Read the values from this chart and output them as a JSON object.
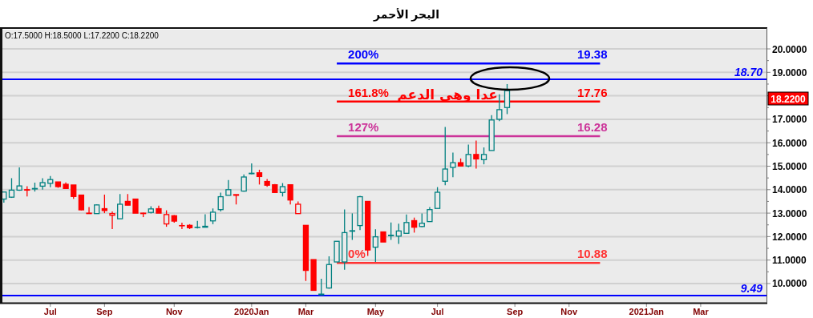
{
  "chart_data": {
    "type": "candlestick",
    "title": "البحر الأحمر",
    "categories": [
      null,
      null,
      null,
      null,
      null,
      null,
      "Jul",
      null,
      null,
      null,
      null,
      null,
      null,
      "Sep",
      null,
      null,
      null,
      null,
      null,
      null,
      null,
      null,
      "Nov",
      null,
      null,
      null,
      null,
      null,
      null,
      null,
      null,
      null,
      "2020Jan",
      null,
      null,
      null,
      null,
      null,
      null,
      "Mar",
      null,
      null,
      null,
      null,
      null,
      null,
      null,
      null,
      "May",
      null,
      null,
      null,
      null,
      null,
      null,
      null,
      "Jul",
      null,
      null,
      null,
      null,
      null,
      null,
      null,
      null,
      null,
      "Sep",
      null,
      null,
      null,
      null,
      null,
      null,
      "Nov",
      null,
      null,
      null,
      null,
      null,
      null,
      null,
      null,
      null,
      "2021Jan",
      null,
      null,
      null,
      null,
      null,
      null,
      "Mar",
      null,
      null,
      null,
      null,
      null,
      null,
      null,
      null
    ],
    "ohlc": [
      [
        13.6,
        13.9,
        13.45,
        13.9
      ],
      [
        13.68,
        14.49,
        13.65,
        13.98
      ],
      [
        13.98,
        14.95,
        13.95,
        14.16
      ],
      [
        14.0,
        14.15,
        13.71,
        13.98
      ],
      [
        14.03,
        14.3,
        13.92,
        14.05
      ],
      [
        14.15,
        14.49,
        14.0,
        14.3
      ],
      [
        14.27,
        14.58,
        14.1,
        14.43
      ],
      [
        14.33,
        14.33,
        14.08,
        14.13
      ],
      [
        14.23,
        14.31,
        14.05,
        14.05
      ],
      [
        14.2,
        14.2,
        13.61,
        13.71
      ],
      [
        13.77,
        13.77,
        13.12,
        13.14
      ],
      [
        13.0,
        13.26,
        12.98,
        12.98
      ],
      [
        12.98,
        13.38,
        12.98,
        13.35
      ],
      [
        13.19,
        13.79,
        13.0,
        13.11
      ],
      [
        12.91,
        13.07,
        12.32,
        12.98
      ],
      [
        12.76,
        13.81,
        12.76,
        13.38
      ],
      [
        13.5,
        13.81,
        13.34,
        13.34
      ],
      [
        13.6,
        13.6,
        13.0,
        13.0
      ],
      [
        13.0,
        13.02,
        12.83,
        12.98
      ],
      [
        13.03,
        13.29,
        12.99,
        13.18
      ],
      [
        13.19,
        13.32,
        13.0,
        13.0
      ],
      [
        12.54,
        13.12,
        12.42,
        12.94
      ],
      [
        12.89,
        12.92,
        12.59,
        12.66
      ],
      [
        12.47,
        12.59,
        12.32,
        12.46
      ],
      [
        12.48,
        12.53,
        12.32,
        12.38
      ],
      [
        12.39,
        12.67,
        12.35,
        12.4
      ],
      [
        12.4,
        12.95,
        12.4,
        12.44
      ],
      [
        12.67,
        13.2,
        12.53,
        13.04
      ],
      [
        13.15,
        13.87,
        13.07,
        13.7
      ],
      [
        13.76,
        14.41,
        13.76,
        14.0
      ],
      [
        13.79,
        13.79,
        13.37,
        13.76
      ],
      [
        13.94,
        14.65,
        13.92,
        14.54
      ],
      [
        14.68,
        15.12,
        14.66,
        14.7
      ],
      [
        14.72,
        14.85,
        14.22,
        14.56
      ],
      [
        14.35,
        14.45,
        14.12,
        14.19
      ],
      [
        14.21,
        14.24,
        13.88,
        13.88
      ],
      [
        13.88,
        14.28,
        13.71,
        14.13
      ],
      [
        14.21,
        14.21,
        13.37,
        13.56
      ],
      [
        12.98,
        13.5,
        12.98,
        13.38
      ],
      [
        12.48,
        12.48,
        10.11,
        10.56
      ],
      [
        11.02,
        11.02,
        9.71,
        9.71
      ],
      [
        9.52,
        10.2,
        9.49,
        9.55
      ],
      [
        9.81,
        11.16,
        9.78,
        10.81
      ],
      [
        10.92,
        11.8,
        10.92,
        11.8
      ],
      [
        10.92,
        13.16,
        10.59,
        12.17
      ],
      [
        12.23,
        12.99,
        11.86,
        12.25
      ],
      [
        12.47,
        13.74,
        12.28,
        13.7
      ],
      [
        13.5,
        13.5,
        11.18,
        11.43
      ],
      [
        11.55,
        12.31,
        10.92,
        11.99
      ],
      [
        12.2,
        12.2,
        11.77,
        11.77
      ],
      [
        12.04,
        12.6,
        11.86,
        12.06
      ],
      [
        12.02,
        12.55,
        11.69,
        12.24
      ],
      [
        12.14,
        12.94,
        12.14,
        12.6
      ],
      [
        12.68,
        12.81,
        12.17,
        12.4
      ],
      [
        12.43,
        12.99,
        12.41,
        12.57
      ],
      [
        12.64,
        13.26,
        12.64,
        13.15
      ],
      [
        13.2,
        14.11,
        13.2,
        13.89
      ],
      [
        14.36,
        16.67,
        14.19,
        14.88
      ],
      [
        14.95,
        15.58,
        14.53,
        15.15
      ],
      [
        15.15,
        15.33,
        15.01,
        15.01
      ],
      [
        15.01,
        15.92,
        14.96,
        15.5
      ],
      [
        15.5,
        16.09,
        14.9,
        15.31
      ],
      [
        15.28,
        15.8,
        15.08,
        15.5
      ],
      [
        15.67,
        17.18,
        15.67,
        16.97
      ],
      [
        17.0,
        18.06,
        16.92,
        17.41
      ],
      [
        17.5,
        18.5,
        17.22,
        18.22
      ],
      null,
      null,
      null,
      null,
      null,
      null,
      null,
      null,
      null,
      null,
      null,
      null,
      null,
      null,
      null,
      null,
      null,
      null,
      null,
      null,
      null,
      null,
      null,
      null,
      null,
      null,
      null,
      null,
      null,
      null,
      null,
      null,
      null
    ],
    "colors": [
      "#008080",
      "#008080",
      "#008080",
      "#ff0000",
      "#008080",
      "#008080",
      "#008080",
      "#ff0000",
      "#ff0000",
      "#ff0000",
      "#ff0000",
      "#ff0000",
      "#008080",
      "#ff0000",
      "#ff0000",
      "#008080",
      "#ff0000",
      "#ff0000",
      "#ff0000",
      "#008080",
      "#ff0000",
      "#ff0000",
      "#ff0000",
      "#ff0000",
      "#ff0000",
      "#008080",
      "#008080",
      "#008080",
      "#008080",
      "#008080",
      "#ff0000",
      "#008080",
      "#008080",
      "#ff0000",
      "#ff0000",
      "#ff0000",
      "#008080",
      "#ff0000",
      "#ff0000",
      "#ff0000",
      "#ff0000",
      "#008080",
      "#008080",
      "#008080",
      "#008080",
      "#008080",
      "#008080",
      "#ff0000",
      "#008080",
      "#ff0000",
      "#008080",
      "#008080",
      "#008080",
      "#ff0000",
      "#008080",
      "#008080",
      "#008080",
      "#008080",
      "#008080",
      "#ff0000",
      "#008080",
      "#ff0000",
      "#008080",
      "#008080",
      "#008080",
      "#008080",
      null,
      null,
      null,
      null,
      null,
      null,
      null,
      null,
      null,
      null,
      null,
      null,
      null,
      null,
      null,
      null,
      null,
      null,
      null,
      null,
      null,
      null,
      null,
      null,
      null,
      null,
      null,
      null,
      null,
      null,
      null,
      null,
      null
    ],
    "ylim": [
      9.18,
      20.82
    ],
    "yticks": [
      {
        "value": 10,
        "label": "10.0000"
      },
      {
        "value": 11,
        "label": "11.0000"
      },
      {
        "value": 12,
        "label": "12.0000"
      },
      {
        "value": 13,
        "label": "13.0000"
      },
      {
        "value": 14,
        "label": "14.0000"
      },
      {
        "value": 15,
        "label": "15.0000"
      },
      {
        "value": 16,
        "label": "16.0000"
      },
      {
        "value": 17,
        "label": "17.0000"
      },
      {
        "value": 18,
        "label": null
      },
      {
        "value": 19,
        "label": "19.0000"
      },
      {
        "value": 20,
        "label": "20.0000"
      }
    ],
    "grid": "y",
    "ref_lines": [
      {
        "axis": "y",
        "value": 18.7,
        "label": "18.70",
        "color": "#0000ff"
      },
      {
        "axis": "y",
        "value": 9.49,
        "label": "9.49",
        "color": "#0000ff"
      }
    ],
    "series": [
      {
        "type": "line",
        "name": "200%",
        "color": "#0000ff",
        "values": [
          null,
          null,
          null,
          null,
          null,
          null,
          null,
          null,
          null,
          null,
          null,
          null,
          null,
          null,
          null,
          null,
          null,
          null,
          null,
          null,
          null,
          null,
          null,
          null,
          null,
          null,
          null,
          null,
          null,
          null,
          null,
          null,
          null,
          null,
          null,
          null,
          null,
          null,
          null,
          null,
          null,
          null,
          null,
          19.38,
          19.38,
          19.38,
          19.38,
          19.38,
          19.38,
          19.38,
          19.38,
          19.38,
          19.38,
          19.38,
          19.38,
          19.38,
          19.38,
          19.38,
          19.38,
          19.38,
          19.38,
          19.38,
          19.38,
          19.38,
          19.38,
          19.38,
          19.38,
          19.38,
          19.38,
          19.38,
          19.38,
          19.38,
          19.38,
          19.38,
          19.38,
          19.38,
          19.38,
          19.38,
          null,
          null,
          null,
          null,
          null,
          null,
          null,
          null,
          null,
          null,
          null,
          null,
          null,
          null,
          null,
          null,
          null,
          null,
          null,
          null,
          null
        ],
        "value_labels": [
          null,
          null,
          null,
          null,
          null,
          null,
          null,
          null,
          null,
          null,
          null,
          null,
          null,
          null,
          null,
          null,
          null,
          null,
          null,
          null,
          null,
          null,
          null,
          null,
          null,
          null,
          null,
          null,
          null,
          null,
          null,
          null,
          null,
          null,
          null,
          null,
          null,
          null,
          null,
          null,
          null,
          null,
          null,
          null,
          null,
          null,
          null,
          null,
          null,
          null,
          null,
          null,
          null,
          null,
          null,
          null,
          null,
          null,
          null,
          null,
          null,
          null,
          null,
          null,
          null,
          null,
          null,
          null,
          null,
          null,
          null,
          null,
          null,
          null,
          null,
          null,
          "19.38",
          null,
          null,
          null,
          null,
          null,
          null,
          null,
          null,
          null,
          null,
          null,
          null,
          null,
          null,
          null,
          null,
          null,
          null,
          null,
          null,
          null,
          null
        ]
      },
      {
        "type": "line",
        "name": "161.8%",
        "color": "#ff0000",
        "values": [
          null,
          null,
          null,
          null,
          null,
          null,
          null,
          null,
          null,
          null,
          null,
          null,
          null,
          null,
          null,
          null,
          null,
          null,
          null,
          null,
          null,
          null,
          null,
          null,
          null,
          null,
          null,
          null,
          null,
          null,
          null,
          null,
          null,
          null,
          null,
          null,
          null,
          null,
          null,
          null,
          null,
          null,
          null,
          17.76,
          17.76,
          17.76,
          17.76,
          17.76,
          17.76,
          17.76,
          17.76,
          17.76,
          17.76,
          17.76,
          17.76,
          17.76,
          17.76,
          17.76,
          17.76,
          17.76,
          17.76,
          17.76,
          17.76,
          17.76,
          17.76,
          17.76,
          17.76,
          17.76,
          17.76,
          17.76,
          17.76,
          17.76,
          17.76,
          17.76,
          17.76,
          17.76,
          17.76,
          17.76,
          null,
          null,
          null,
          null,
          null,
          null,
          null,
          null,
          null,
          null,
          null,
          null,
          null,
          null,
          null,
          null,
          null,
          null,
          null,
          null,
          null
        ],
        "value_labels": [
          null,
          null,
          null,
          null,
          null,
          null,
          null,
          null,
          null,
          null,
          null,
          null,
          null,
          null,
          null,
          null,
          null,
          null,
          null,
          null,
          null,
          null,
          null,
          null,
          null,
          null,
          null,
          null,
          null,
          null,
          null,
          null,
          null,
          null,
          null,
          null,
          null,
          null,
          null,
          null,
          null,
          null,
          null,
          null,
          null,
          null,
          null,
          null,
          null,
          null,
          null,
          null,
          null,
          null,
          null,
          null,
          null,
          null,
          null,
          null,
          null,
          null,
          null,
          null,
          null,
          null,
          null,
          null,
          null,
          null,
          null,
          null,
          null,
          null,
          null,
          null,
          "17.76",
          null,
          null,
          null,
          null,
          null,
          null,
          null,
          null,
          null,
          null,
          null,
          null,
          null,
          null,
          null,
          null,
          null,
          null,
          null,
          null,
          null,
          null
        ]
      },
      {
        "type": "line",
        "name": "127%",
        "color": "#cc3399",
        "values": [
          null,
          null,
          null,
          null,
          null,
          null,
          null,
          null,
          null,
          null,
          null,
          null,
          null,
          null,
          null,
          null,
          null,
          null,
          null,
          null,
          null,
          null,
          null,
          null,
          null,
          null,
          null,
          null,
          null,
          null,
          null,
          null,
          null,
          null,
          null,
          null,
          null,
          null,
          null,
          null,
          null,
          null,
          null,
          16.28,
          16.28,
          16.28,
          16.28,
          16.28,
          16.28,
          16.28,
          16.28,
          16.28,
          16.28,
          16.28,
          16.28,
          16.28,
          16.28,
          16.28,
          16.28,
          16.28,
          16.28,
          16.28,
          16.28,
          16.28,
          16.28,
          16.28,
          16.28,
          16.28,
          16.28,
          16.28,
          16.28,
          16.28,
          16.28,
          16.28,
          16.28,
          16.28,
          16.28,
          16.28,
          null,
          null,
          null,
          null,
          null,
          null,
          null,
          null,
          null,
          null,
          null,
          null,
          null,
          null,
          null,
          null,
          null,
          null,
          null,
          null,
          null
        ],
        "value_labels": [
          null,
          null,
          null,
          null,
          null,
          null,
          null,
          null,
          null,
          null,
          null,
          null,
          null,
          null,
          null,
          null,
          null,
          null,
          null,
          null,
          null,
          null,
          null,
          null,
          null,
          null,
          null,
          null,
          null,
          null,
          null,
          null,
          null,
          null,
          null,
          null,
          null,
          null,
          null,
          null,
          null,
          null,
          null,
          null,
          null,
          null,
          null,
          null,
          null,
          null,
          null,
          null,
          null,
          null,
          null,
          null,
          null,
          null,
          null,
          null,
          null,
          null,
          null,
          null,
          null,
          null,
          null,
          null,
          null,
          null,
          null,
          null,
          null,
          null,
          null,
          null,
          "16.28",
          null,
          null,
          null,
          null,
          null,
          null,
          null,
          null,
          null,
          null,
          null,
          null,
          null,
          null,
          null,
          null,
          null,
          null,
          null,
          null,
          null,
          null
        ]
      },
      {
        "type": "line",
        "name": "0%",
        "color": "#ff3333",
        "values": [
          null,
          null,
          null,
          null,
          null,
          null,
          null,
          null,
          null,
          null,
          null,
          null,
          null,
          null,
          null,
          null,
          null,
          null,
          null,
          null,
          null,
          null,
          null,
          null,
          null,
          null,
          null,
          null,
          null,
          null,
          null,
          null,
          null,
          null,
          null,
          null,
          null,
          null,
          null,
          null,
          null,
          null,
          null,
          10.88,
          10.88,
          10.88,
          10.88,
          10.88,
          10.88,
          10.88,
          10.88,
          10.88,
          10.88,
          10.88,
          10.88,
          10.88,
          10.88,
          10.88,
          10.88,
          10.88,
          10.88,
          10.88,
          10.88,
          10.88,
          10.88,
          10.88,
          10.88,
          10.88,
          10.88,
          10.88,
          10.88,
          10.88,
          10.88,
          10.88,
          10.88,
          10.88,
          10.88,
          10.88,
          null,
          null,
          null,
          null,
          null,
          null,
          null,
          null,
          null,
          null,
          null,
          null,
          null,
          null,
          null,
          null,
          null,
          null,
          null,
          null,
          null
        ],
        "value_labels": [
          null,
          null,
          null,
          null,
          null,
          null,
          null,
          null,
          null,
          null,
          null,
          null,
          null,
          null,
          null,
          null,
          null,
          null,
          null,
          null,
          null,
          null,
          null,
          null,
          null,
          null,
          null,
          null,
          null,
          null,
          null,
          null,
          null,
          null,
          null,
          null,
          null,
          null,
          null,
          null,
          null,
          null,
          null,
          null,
          null,
          null,
          null,
          null,
          null,
          null,
          null,
          null,
          null,
          null,
          null,
          null,
          null,
          null,
          null,
          null,
          null,
          null,
          null,
          null,
          null,
          null,
          null,
          null,
          null,
          null,
          null,
          null,
          null,
          null,
          null,
          null,
          "10.88",
          null,
          null,
          null,
          null,
          null,
          null,
          null,
          null,
          null,
          null,
          null,
          null,
          null,
          null,
          null,
          null,
          null,
          null,
          null,
          null,
          null,
          null
        ]
      }
    ],
    "annotations": [
      "O:17.5000  H:18.5000  L:17.2200  C:18.2200",
      "عدا وهى الدعم",
      "18.2200"
    ]
  }
}
